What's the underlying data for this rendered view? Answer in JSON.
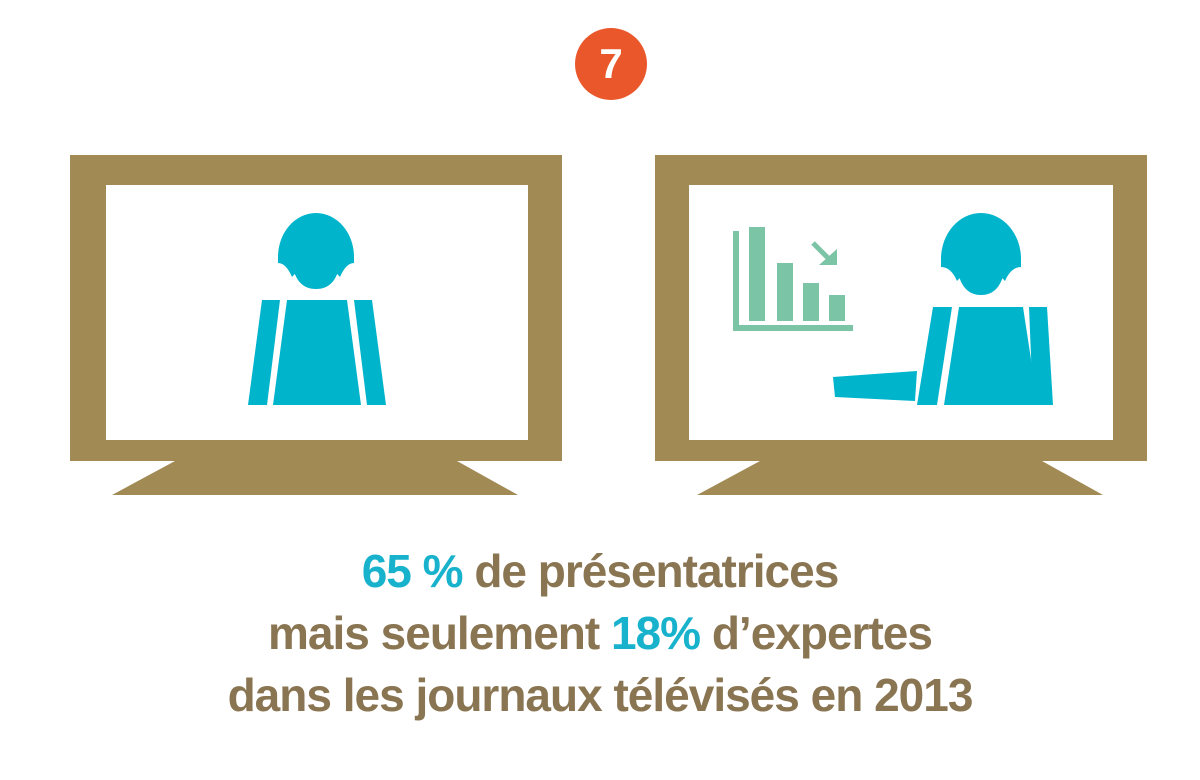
{
  "badge": {
    "number": "7"
  },
  "colors": {
    "badge": "#e9572b",
    "tv_frame": "#a28a55",
    "person": "#00b4cc",
    "chart_icon": "#7cc4a6",
    "text": "#8a7552",
    "highlight": "#18b2cc"
  },
  "icons": {
    "left_tv": [
      "television-icon",
      "presenter-woman-icon"
    ],
    "right_tv": [
      "television-icon",
      "expert-woman-icon",
      "declining-bar-chart-icon",
      "down-right-arrow-icon"
    ]
  },
  "caption": {
    "line1_value": "65 %",
    "line1_text": " de présentatrices",
    "line2_text_before": "mais seulement ",
    "line2_value": "18%",
    "line2_text_after": " d’expertes",
    "line3_text": "dans les journaux télévisés en 2013"
  }
}
